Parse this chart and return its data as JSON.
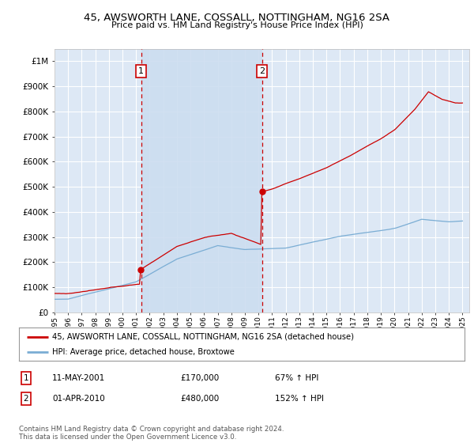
{
  "title": "45, AWSWORTH LANE, COSSALL, NOTTINGHAM, NG16 2SA",
  "subtitle": "Price paid vs. HM Land Registry's House Price Index (HPI)",
  "background_color": "#ffffff",
  "plot_bg_color": "#dde8f5",
  "highlight_color": "#ccddf0",
  "grid_color": "#ffffff",
  "hpi_color": "#7aadd4",
  "price_color": "#cc0000",
  "sale1_date_num": 2001.37,
  "sale1_price": 170000,
  "sale2_date_num": 2010.25,
  "sale2_price": 480000,
  "xmin": 1995.0,
  "xmax": 2025.5,
  "ymin": 0,
  "ymax": 1050000,
  "legend_line1": "45, AWSWORTH LANE, COSSALL, NOTTINGHAM, NG16 2SA (detached house)",
  "legend_line2": "HPI: Average price, detached house, Broxtowe",
  "table_row1_date": "11-MAY-2001",
  "table_row1_price": "£170,000",
  "table_row1_hpi": "67% ↑ HPI",
  "table_row2_date": "01-APR-2010",
  "table_row2_price": "£480,000",
  "table_row2_hpi": "152% ↑ HPI",
  "footnote": "Contains HM Land Registry data © Crown copyright and database right 2024.\nThis data is licensed under the Open Government Licence v3.0."
}
